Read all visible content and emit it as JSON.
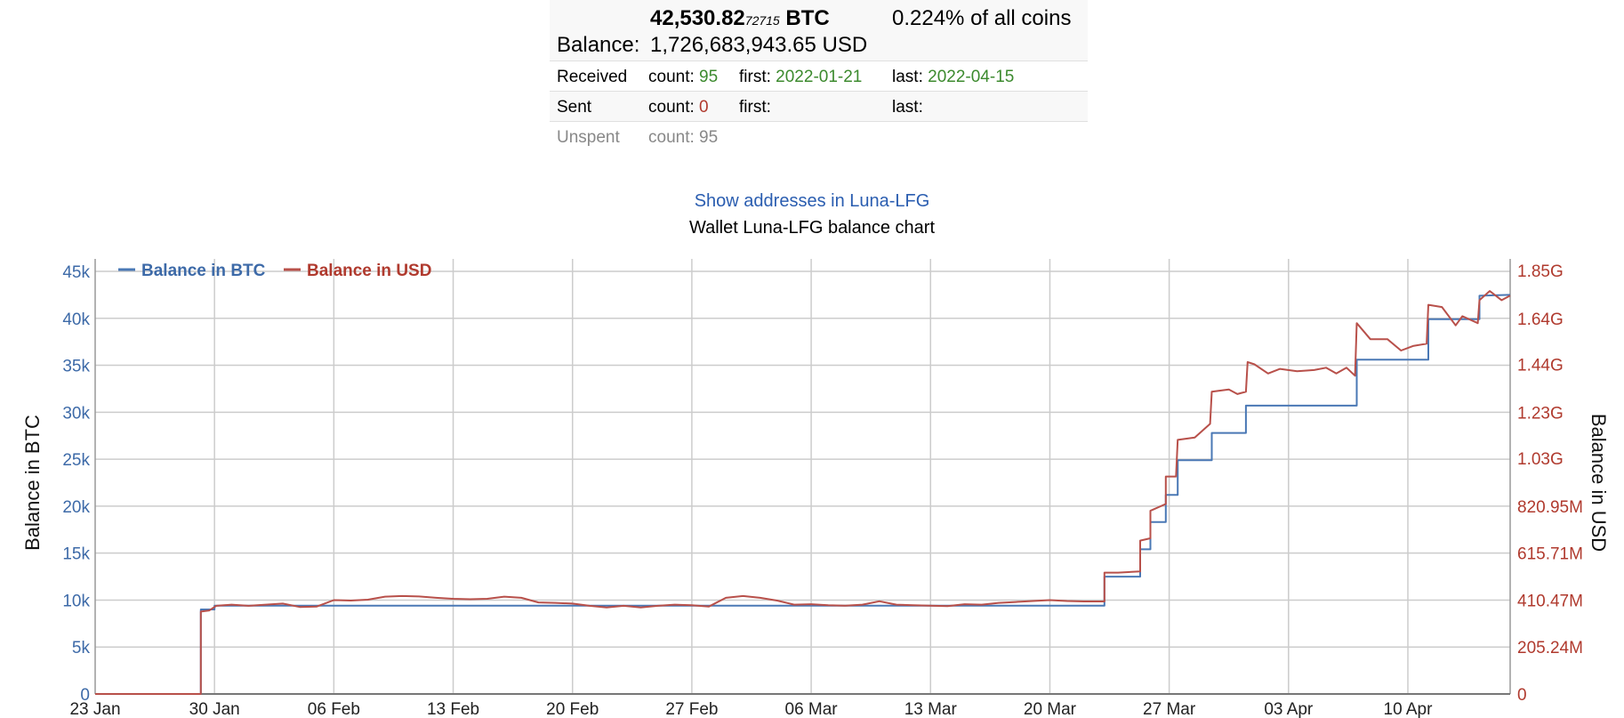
{
  "summary": {
    "btc_main": "42,530.82",
    "btc_small": "72715",
    "btc_unit": "BTC",
    "coins_share": "0.224% of all coins",
    "balance_label": "Balance:",
    "balance_usd": "1,726,683,943.65 USD",
    "received": {
      "label": "Received",
      "count_label": "count:",
      "count": "95",
      "first_label": "first:",
      "first": "2022-01-21",
      "last_label": "last:",
      "last": "2022-04-15"
    },
    "sent": {
      "label": "Sent",
      "count_label": "count:",
      "count": "0",
      "first_label": "first:",
      "first": "",
      "last_label": "last:",
      "last": ""
    },
    "unspent": {
      "label": "Unspent",
      "count_label": "count:",
      "count": "95"
    }
  },
  "show_addresses_link": "Show addresses in Luna-LFG",
  "chart_title": "Wallet Luna-LFG balance chart",
  "colors": {
    "btc": "#4a78b5",
    "usd": "#b8504a",
    "grid": "#cccccc"
  },
  "chart_data": {
    "type": "line",
    "title": "Wallet Luna-LFG balance chart",
    "legend_position": "top-left",
    "grid": true,
    "x_range": [
      "2022-01-23",
      "2022-04-16"
    ],
    "x_ticks": [
      {
        "date": "2022-01-23",
        "label": "23 Jan"
      },
      {
        "date": "2022-01-30",
        "label": "30 Jan"
      },
      {
        "date": "2022-02-06",
        "label": "06 Feb"
      },
      {
        "date": "2022-02-13",
        "label": "13 Feb"
      },
      {
        "date": "2022-02-20",
        "label": "20 Feb"
      },
      {
        "date": "2022-02-27",
        "label": "27 Feb"
      },
      {
        "date": "2022-03-06",
        "label": "06 Mar"
      },
      {
        "date": "2022-03-13",
        "label": "13 Mar"
      },
      {
        "date": "2022-03-20",
        "label": "20 Mar"
      },
      {
        "date": "2022-03-27",
        "label": "27 Mar"
      },
      {
        "date": "2022-04-03",
        "label": "03 Apr"
      },
      {
        "date": "2022-04-10",
        "label": "10 Apr"
      }
    ],
    "y_left": {
      "label": "Balance in BTC",
      "range": [
        0,
        45000
      ],
      "ticks": [
        {
          "value": 0,
          "label": "0"
        },
        {
          "value": 5000,
          "label": "5k"
        },
        {
          "value": 10000,
          "label": "10k"
        },
        {
          "value": 15000,
          "label": "15k"
        },
        {
          "value": 20000,
          "label": "20k"
        },
        {
          "value": 25000,
          "label": "25k"
        },
        {
          "value": 30000,
          "label": "30k"
        },
        {
          "value": 35000,
          "label": "35k"
        },
        {
          "value": 40000,
          "label": "40k"
        },
        {
          "value": 45000,
          "label": "45k"
        }
      ]
    },
    "y_right": {
      "label": "Balance in USD",
      "range": [
        0,
        1846000000
      ],
      "ticks": [
        {
          "value": 0,
          "label": "0"
        },
        {
          "value": 205240000,
          "label": "205.24M"
        },
        {
          "value": 410470000,
          "label": "410.47M"
        },
        {
          "value": 615710000,
          "label": "615.71M"
        },
        {
          "value": 820950000,
          "label": "820.95M"
        },
        {
          "value": 1030000000,
          "label": "1.03G"
        },
        {
          "value": 1230000000,
          "label": "1.23G"
        },
        {
          "value": 1440000000,
          "label": "1.44G"
        },
        {
          "value": 1640000000,
          "label": "1.64G"
        },
        {
          "value": 1850000000,
          "label": "1.85G"
        }
      ]
    },
    "series": [
      {
        "name": "Balance in BTC",
        "axis": "left",
        "step": true,
        "points": [
          [
            "2022-01-23",
            0
          ],
          [
            "2022-01-29.2",
            0
          ],
          [
            "2022-01-29.2",
            9000
          ],
          [
            "2022-01-30.0",
            9000
          ],
          [
            "2022-01-30.0",
            9400
          ],
          [
            "2022-03-23.2",
            9400
          ],
          [
            "2022-03-23.2",
            12500
          ],
          [
            "2022-03-25.3",
            12500
          ],
          [
            "2022-03-25.3",
            15400
          ],
          [
            "2022-03-25.9",
            15400
          ],
          [
            "2022-03-25.9",
            18300
          ],
          [
            "2022-03-26.8",
            18300
          ],
          [
            "2022-03-26.8",
            21200
          ],
          [
            "2022-03-27.5",
            21200
          ],
          [
            "2022-03-27.5",
            24900
          ],
          [
            "2022-03-29.5",
            24900
          ],
          [
            "2022-03-29.5",
            27800
          ],
          [
            "2022-03-31.5",
            27800
          ],
          [
            "2022-03-31.5",
            30700
          ],
          [
            "2022-04-07.0",
            30700
          ],
          [
            "2022-04-07.0",
            35600
          ],
          [
            "2022-04-11.2",
            35600
          ],
          [
            "2022-04-11.2",
            39900
          ],
          [
            "2022-04-14.2",
            39900
          ],
          [
            "2022-04-14.2",
            42400
          ],
          [
            "2022-04-16",
            42500
          ]
        ]
      },
      {
        "name": "Balance in USD",
        "axis": "right",
        "step": false,
        "points": [
          [
            "2022-01-23",
            0
          ],
          [
            "2022-01-29.2",
            0
          ],
          [
            "2022-01-29.2",
            360000000
          ],
          [
            "2022-01-29.7",
            365000000
          ],
          [
            "2022-01-30.1",
            385000000
          ],
          [
            "2022-01-31",
            390000000
          ],
          [
            "2022-02-01",
            385000000
          ],
          [
            "2022-02-02",
            390000000
          ],
          [
            "2022-02-03",
            395000000
          ],
          [
            "2022-02-04",
            380000000
          ],
          [
            "2022-02-05",
            382000000
          ],
          [
            "2022-02-06",
            410000000
          ],
          [
            "2022-02-07",
            408000000
          ],
          [
            "2022-02-08",
            412000000
          ],
          [
            "2022-02-09",
            425000000
          ],
          [
            "2022-02-10",
            428000000
          ],
          [
            "2022-02-11",
            426000000
          ],
          [
            "2022-02-12",
            420000000
          ],
          [
            "2022-02-13",
            416000000
          ],
          [
            "2022-02-14",
            414000000
          ],
          [
            "2022-02-15",
            416000000
          ],
          [
            "2022-02-16",
            425000000
          ],
          [
            "2022-02-17",
            420000000
          ],
          [
            "2022-02-18",
            400000000
          ],
          [
            "2022-02-19",
            398000000
          ],
          [
            "2022-02-20",
            395000000
          ],
          [
            "2022-02-21",
            385000000
          ],
          [
            "2022-02-22",
            378000000
          ],
          [
            "2022-02-23",
            385000000
          ],
          [
            "2022-02-24",
            378000000
          ],
          [
            "2022-02-25",
            385000000
          ],
          [
            "2022-02-26",
            390000000
          ],
          [
            "2022-02-27",
            388000000
          ],
          [
            "2022-02-28",
            382000000
          ],
          [
            "2022-03-01",
            420000000
          ],
          [
            "2022-03-02",
            428000000
          ],
          [
            "2022-03-03",
            420000000
          ],
          [
            "2022-03-04",
            408000000
          ],
          [
            "2022-03-05",
            390000000
          ],
          [
            "2022-03-06",
            392000000
          ],
          [
            "2022-03-07",
            388000000
          ],
          [
            "2022-03-08",
            386000000
          ],
          [
            "2022-03-09",
            390000000
          ],
          [
            "2022-03-10",
            405000000
          ],
          [
            "2022-03-11",
            390000000
          ],
          [
            "2022-03-12",
            388000000
          ],
          [
            "2022-03-13",
            386000000
          ],
          [
            "2022-03-14",
            384000000
          ],
          [
            "2022-03-15",
            392000000
          ],
          [
            "2022-03-16",
            390000000
          ],
          [
            "2022-03-17",
            398000000
          ],
          [
            "2022-03-18",
            402000000
          ],
          [
            "2022-03-19",
            406000000
          ],
          [
            "2022-03-20",
            410000000
          ],
          [
            "2022-03-21",
            406000000
          ],
          [
            "2022-03-22",
            404000000
          ],
          [
            "2022-03-23.2",
            404000000
          ],
          [
            "2022-03-23.2",
            530000000
          ],
          [
            "2022-03-24",
            530000000
          ],
          [
            "2022-03-25.3",
            535000000
          ],
          [
            "2022-03-25.3",
            670000000
          ],
          [
            "2022-03-25.9",
            680000000
          ],
          [
            "2022-03-25.9",
            800000000
          ],
          [
            "2022-03-26.5",
            820000000
          ],
          [
            "2022-03-26.8",
            830000000
          ],
          [
            "2022-03-26.8",
            950000000
          ],
          [
            "2022-03-27.4",
            950000000
          ],
          [
            "2022-03-27.5",
            1110000000
          ],
          [
            "2022-03-28.5",
            1120000000
          ],
          [
            "2022-03-29.4",
            1180000000
          ],
          [
            "2022-03-29.5",
            1320000000
          ],
          [
            "2022-03-30.5",
            1330000000
          ],
          [
            "2022-03-31",
            1310000000
          ],
          [
            "2022-03-31.5",
            1320000000
          ],
          [
            "2022-03-31.6",
            1450000000
          ],
          [
            "2022-04-01",
            1440000000
          ],
          [
            "2022-04-01.8",
            1400000000
          ],
          [
            "2022-04-02.5",
            1420000000
          ],
          [
            "2022-04-03.5",
            1410000000
          ],
          [
            "2022-04-04.5",
            1415000000
          ],
          [
            "2022-04-05.2",
            1425000000
          ],
          [
            "2022-04-05.8",
            1400000000
          ],
          [
            "2022-04-06.4",
            1425000000
          ],
          [
            "2022-04-06.9",
            1390000000
          ],
          [
            "2022-04-07.0",
            1620000000
          ],
          [
            "2022-04-07.8",
            1550000000
          ],
          [
            "2022-04-08.8",
            1550000000
          ],
          [
            "2022-04-09.6",
            1500000000
          ],
          [
            "2022-04-10.3",
            1520000000
          ],
          [
            "2022-04-11.1",
            1530000000
          ],
          [
            "2022-04-11.2",
            1700000000
          ],
          [
            "2022-04-12",
            1690000000
          ],
          [
            "2022-04-12.8",
            1610000000
          ],
          [
            "2022-04-13.2",
            1650000000
          ],
          [
            "2022-04-14.1",
            1620000000
          ],
          [
            "2022-04-14.2",
            1720000000
          ],
          [
            "2022-04-14.8",
            1760000000
          ],
          [
            "2022-04-15.5",
            1720000000
          ],
          [
            "2022-04-16",
            1740000000
          ]
        ]
      }
    ]
  }
}
